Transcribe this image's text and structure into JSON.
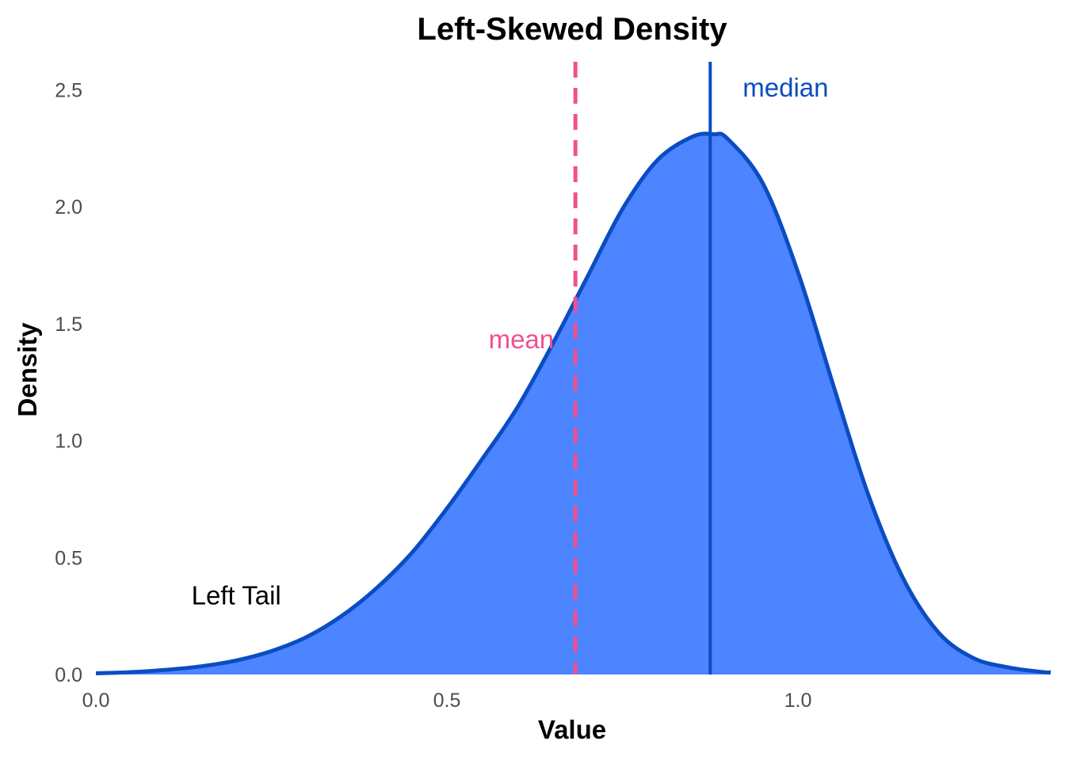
{
  "chart_data": {
    "type": "area",
    "title": "Left-Skewed Density",
    "xlabel": "Value",
    "ylabel": "Density",
    "xlim": [
      0,
      1.36
    ],
    "ylim": [
      0,
      2.62
    ],
    "x_ticks": [
      0.0,
      0.5,
      1.0
    ],
    "x_tick_labels": [
      "0.0",
      "0.5",
      "1.0"
    ],
    "y_ticks": [
      0.0,
      0.5,
      1.0,
      1.5,
      2.0,
      2.5
    ],
    "y_tick_labels": [
      "0.0",
      "0.5",
      "1.0",
      "1.5",
      "2.0",
      "2.5"
    ],
    "grid": false,
    "legend": "none",
    "series": [
      {
        "x": [
          0.0,
          0.05,
          0.1,
          0.15,
          0.2,
          0.25,
          0.3,
          0.35,
          0.4,
          0.45,
          0.5,
          0.55,
          0.6,
          0.65,
          0.7,
          0.75,
          0.8,
          0.85,
          0.88,
          0.9,
          0.95,
          1.0,
          1.05,
          1.1,
          1.15,
          1.2,
          1.25,
          1.3,
          1.35,
          1.36
        ],
        "y": [
          0.005,
          0.01,
          0.02,
          0.035,
          0.06,
          0.1,
          0.16,
          0.25,
          0.37,
          0.52,
          0.71,
          0.92,
          1.14,
          1.41,
          1.7,
          1.99,
          2.2,
          2.3,
          2.31,
          2.29,
          2.1,
          1.72,
          1.24,
          0.77,
          0.41,
          0.18,
          0.07,
          0.03,
          0.01,
          0.01
        ]
      }
    ],
    "annotations": {
      "mean": {
        "label": "mean",
        "x": 0.683
      },
      "median": {
        "label": "median",
        "x": 0.875
      },
      "tail": {
        "label": "Left Tail",
        "x": 0.2,
        "y": 0.3
      }
    },
    "colors": {
      "fill": "#4d84ff",
      "line": "#0a4dc2",
      "mean": "#f0508e",
      "median": "#0a4dc2",
      "tail_text": "#000000"
    }
  }
}
